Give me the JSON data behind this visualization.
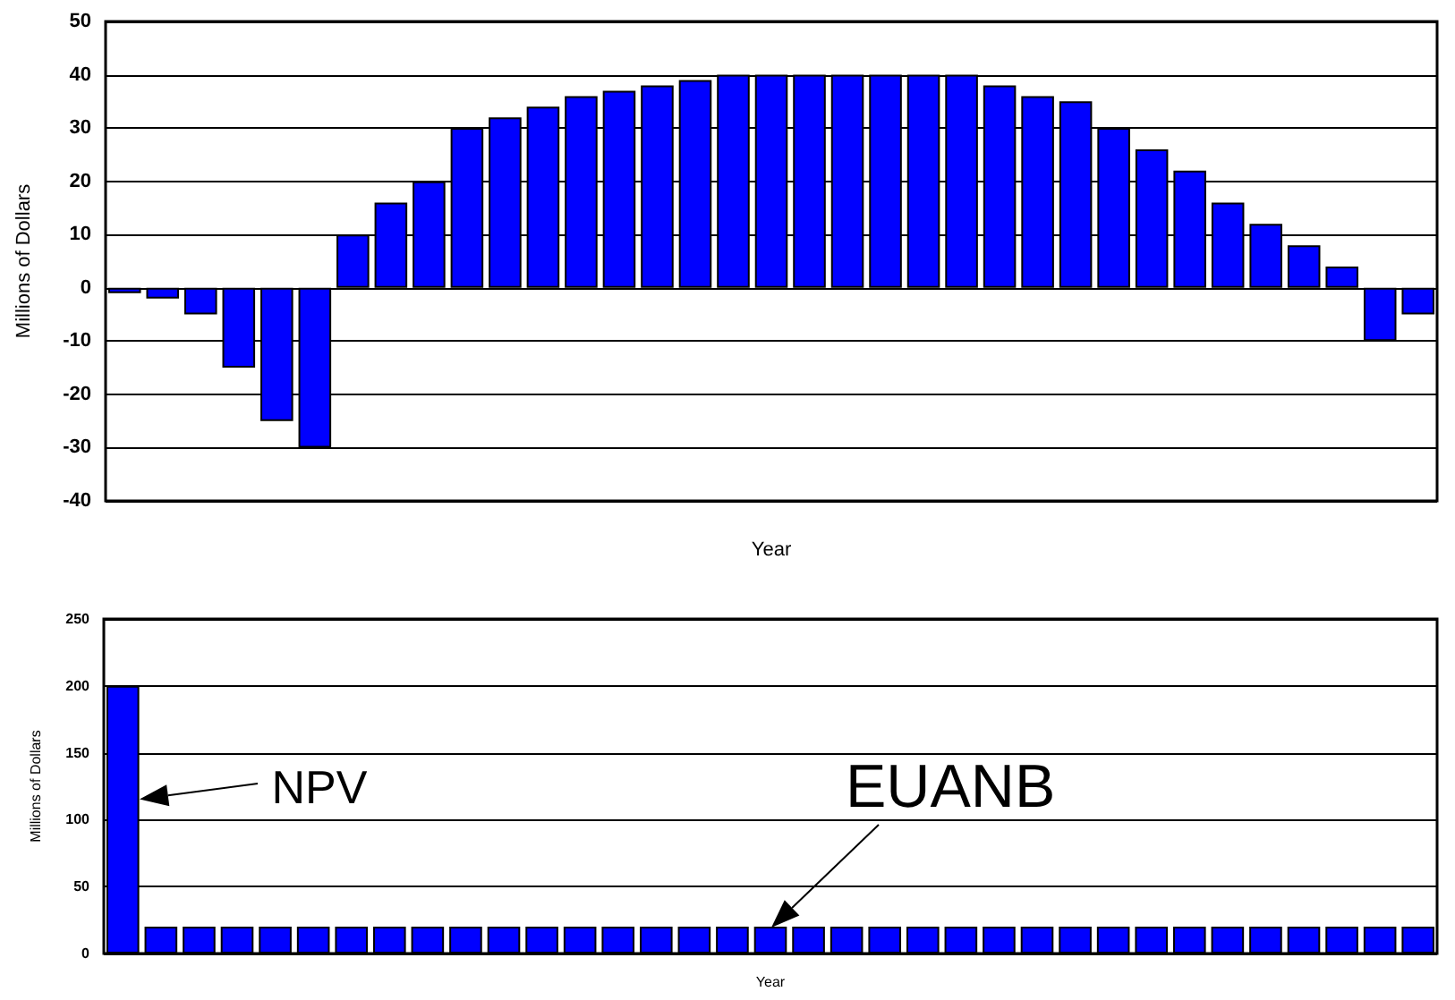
{
  "chart_data": [
    {
      "type": "bar",
      "xlabel": "Year",
      "ylabel": "Millions of Dollars",
      "categories": [
        null,
        null,
        null,
        null,
        null,
        null,
        null,
        null,
        null,
        null,
        null,
        null,
        null,
        null,
        null,
        null,
        null,
        null,
        null,
        null,
        null,
        null,
        null,
        null,
        null,
        null,
        null,
        null,
        null,
        null,
        null,
        null,
        null,
        null,
        null
      ],
      "series": [
        {
          "color": "#0000ff",
          "values": [
            -1,
            -2,
            -5,
            -15,
            -25,
            -30,
            10,
            16,
            20,
            30,
            32,
            34,
            36,
            37,
            38,
            39,
            40,
            40,
            40,
            40,
            40,
            40,
            40,
            38,
            36,
            35,
            30,
            26,
            22,
            16,
            12,
            8,
            4,
            -10,
            -5
          ]
        }
      ],
      "ylim": [
        -40,
        50
      ],
      "yticks": [
        -40,
        -30,
        -20,
        -10,
        0,
        10,
        20,
        30,
        40,
        50
      ],
      "grid": "y",
      "tick_labels": "y"
    },
    {
      "type": "bar",
      "xlabel": "Year",
      "ylabel": "Millions of Dollars",
      "categories": [
        null,
        null,
        null,
        null,
        null,
        null,
        null,
        null,
        null,
        null,
        null,
        null,
        null,
        null,
        null,
        null,
        null,
        null,
        null,
        null,
        null,
        null,
        null,
        null,
        null,
        null,
        null,
        null,
        null,
        null,
        null,
        null,
        null,
        null,
        null
      ],
      "series": [
        {
          "color": "#0000ff",
          "values": [
            200,
            20,
            20,
            20,
            20,
            20,
            20,
            20,
            20,
            20,
            20,
            20,
            20,
            20,
            20,
            20,
            20,
            20,
            20,
            20,
            20,
            20,
            20,
            20,
            20,
            20,
            20,
            20,
            20,
            20,
            20,
            20,
            20,
            20,
            20
          ]
        }
      ],
      "ylim": [
        0,
        250
      ],
      "yticks": [
        0,
        50,
        100,
        150,
        200,
        250
      ],
      "grid": "y",
      "tick_labels": "y",
      "annotations": [
        "NPV",
        "EUANB"
      ]
    }
  ]
}
